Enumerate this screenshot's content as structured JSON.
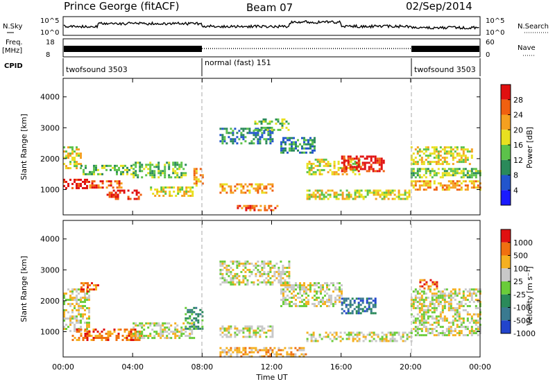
{
  "header": {
    "station": "Prince George (fitACF)",
    "beam": "Beam 07",
    "date": "02/Sep/2014"
  },
  "strip": {
    "nsky_label": "N.Sky",
    "nsky_ticks": [
      "10^5",
      "10^0"
    ],
    "nsearch_label": "N.Search",
    "nsearch_ticks": [
      "10^5",
      "10^0"
    ],
    "freq_label": "Freq.",
    "freq_unit": "[MHz]",
    "freq_ticks": [
      "18",
      "8"
    ],
    "nave_label": "Nave",
    "nave_ticks": [
      "60",
      "0"
    ],
    "cpid_label": "CPID",
    "cpid_segments": [
      {
        "name": "twofsound 3503",
        "start": 0,
        "end": 8
      },
      {
        "name": "normal (fast) 151",
        "start": 8,
        "end": 20
      },
      {
        "name": "twofsound 3503",
        "start": 20,
        "end": 24
      }
    ]
  },
  "chart_data": [
    {
      "type": "heatmap",
      "panel": "power",
      "ylabel": "Slant Range [km]",
      "xlabel": "",
      "ylim": [
        180,
        4600
      ],
      "xlim": [
        0,
        24
      ],
      "y_ticks": [
        1000,
        2000,
        3000,
        4000
      ],
      "colorbar": {
        "label": "Power [dB]",
        "ticks": [
          "28",
          "24",
          "20",
          "16",
          "12",
          "8",
          "4"
        ],
        "colors": [
          "#1a1aff",
          "#2255cc",
          "#2a8a5a",
          "#5cc24a",
          "#e8e020",
          "#f5a020",
          "#f06010",
          "#e01010"
        ]
      },
      "echo_bands": [
        {
          "t0": 0.0,
          "t1": 1.5,
          "r0": 1050,
          "r1": 1350,
          "level": 7
        },
        {
          "t0": 1.5,
          "t1": 3.5,
          "r0": 1050,
          "r1": 1300,
          "level": 6
        },
        {
          "t0": 2.5,
          "t1": 4.5,
          "r0": 700,
          "r1": 1000,
          "level": 7
        },
        {
          "t0": 0.0,
          "t1": 1.0,
          "r0": 1700,
          "r1": 2400,
          "level": 4
        },
        {
          "t0": 1.0,
          "t1": 4.0,
          "r0": 1500,
          "r1": 1800,
          "level": 3
        },
        {
          "t0": 4.0,
          "t1": 7.0,
          "r0": 1400,
          "r1": 1900,
          "level": 3
        },
        {
          "t0": 5.0,
          "t1": 7.5,
          "r0": 800,
          "r1": 1100,
          "level": 4
        },
        {
          "t0": 7.5,
          "t1": 8.0,
          "r0": 1100,
          "r1": 1700,
          "level": 5
        },
        {
          "t0": 9.0,
          "t1": 12.0,
          "r0": 2500,
          "r1": 3000,
          "level": 2
        },
        {
          "t0": 11.0,
          "t1": 13.0,
          "r0": 2900,
          "r1": 3300,
          "level": 3
        },
        {
          "t0": 9.0,
          "t1": 12.0,
          "r0": 900,
          "r1": 1200,
          "level": 5
        },
        {
          "t0": 10.0,
          "t1": 12.5,
          "r0": 300,
          "r1": 500,
          "level": 6
        },
        {
          "t0": 12.5,
          "t1": 14.5,
          "r0": 2200,
          "r1": 2700,
          "level": 2
        },
        {
          "t0": 14.0,
          "t1": 17.0,
          "r0": 1500,
          "r1": 2000,
          "level": 4
        },
        {
          "t0": 16.0,
          "t1": 18.5,
          "r0": 1600,
          "r1": 2100,
          "level": 7
        },
        {
          "t0": 14.0,
          "t1": 20.0,
          "r0": 700,
          "r1": 1000,
          "level": 4
        },
        {
          "t0": 20.0,
          "t1": 24.0,
          "r0": 1000,
          "r1": 1300,
          "level": 5
        },
        {
          "t0": 20.0,
          "t1": 23.5,
          "r0": 1800,
          "r1": 2400,
          "level": 4
        },
        {
          "t0": 20.0,
          "t1": 24.0,
          "r0": 1400,
          "r1": 1700,
          "level": 3
        }
      ]
    },
    {
      "type": "heatmap",
      "panel": "velocity",
      "ylabel": "Slant Range [km]",
      "xlabel": "Time UT",
      "ylim": [
        180,
        4600
      ],
      "xlim": [
        0,
        24
      ],
      "y_ticks": [
        1000,
        2000,
        3000,
        4000
      ],
      "x_tick_labels": [
        "00:00",
        "04:00",
        "08:00",
        "12:00",
        "16:00",
        "20:00",
        "00:00"
      ],
      "colorbar": {
        "label": "Velocity [m s⁻¹]",
        "ticks": [
          "1000",
          "500",
          "100",
          "25",
          "-25",
          "-100",
          "-500",
          "-1000"
        ],
        "colors": [
          "#2244cc",
          "#3a7a90",
          "#2a8a5a",
          "#6acc3a",
          "#c8c8c8",
          "#f5b020",
          "#f07010",
          "#e01010"
        ]
      },
      "echo_bands": [
        {
          "t0": 0.0,
          "t1": 1.5,
          "r0": 1050,
          "r1": 2400,
          "level": 4
        },
        {
          "t0": 0.5,
          "t1": 4.5,
          "r0": 700,
          "r1": 1100,
          "level": 6
        },
        {
          "t0": 1.0,
          "t1": 2.0,
          "r0": 2300,
          "r1": 2600,
          "level": 6
        },
        {
          "t0": 4.0,
          "t1": 7.5,
          "r0": 800,
          "r1": 1300,
          "level": 4
        },
        {
          "t0": 7.0,
          "t1": 8.0,
          "r0": 1100,
          "r1": 1800,
          "level": 2
        },
        {
          "t0": 9.0,
          "t1": 13.0,
          "r0": 2500,
          "r1": 3300,
          "level": 4
        },
        {
          "t0": 9.0,
          "t1": 12.0,
          "r0": 800,
          "r1": 1200,
          "level": 4
        },
        {
          "t0": 9.0,
          "t1": 14.0,
          "r0": 200,
          "r1": 500,
          "level": 5
        },
        {
          "t0": 12.5,
          "t1": 16.0,
          "r0": 1800,
          "r1": 2600,
          "level": 4
        },
        {
          "t0": 16.0,
          "t1": 18.0,
          "r0": 1600,
          "r1": 2100,
          "level": 1
        },
        {
          "t0": 14.0,
          "t1": 20.0,
          "r0": 700,
          "r1": 1000,
          "level": 4
        },
        {
          "t0": 20.0,
          "t1": 24.0,
          "r0": 900,
          "r1": 2400,
          "level": 4
        },
        {
          "t0": 20.5,
          "t1": 21.5,
          "r0": 2400,
          "r1": 2700,
          "level": 6
        }
      ]
    }
  ]
}
